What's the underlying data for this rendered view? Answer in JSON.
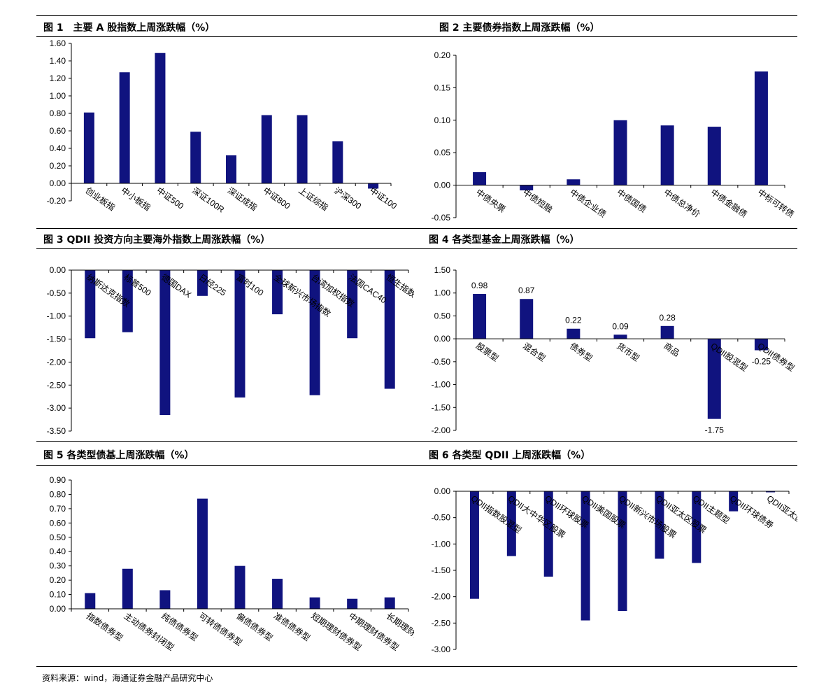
{
  "colors": {
    "bar": "#10137F",
    "axis": "#000000"
  },
  "figures": [
    {
      "title": "图 1　主要 A 股指数上周涨跌幅（%）"
    },
    {
      "title": "图 2  主要债券指数上周涨跌幅（%）"
    },
    {
      "title": "图 3 QDII 投资方向主要海外指数上周涨跌幅（%）"
    },
    {
      "title": "图 4  各类型基金上周涨跌幅（%）"
    },
    {
      "title": "图 5  各类型债基上周涨跌幅（%）"
    },
    {
      "title": "图 6  各类型 QDII 上周涨跌幅（%）"
    }
  ],
  "chart_data": [
    {
      "type": "bar",
      "categories": [
        "创业板指",
        "中小板指",
        "中证500",
        "深证100R",
        "深证成指",
        "中证800",
        "上证综指",
        "沪深300",
        "中证100"
      ],
      "values": [
        0.81,
        1.27,
        1.49,
        0.59,
        0.32,
        0.78,
        0.78,
        0.48,
        -0.06
      ],
      "ylim": [
        -0.2,
        1.6
      ],
      "yticks": [
        "1.60",
        "1.40",
        "1.20",
        "1.00",
        "0.80",
        "0.60",
        "0.40",
        "0.20",
        "0.00",
        "-0.20"
      ],
      "label_pos": "below-axis"
    },
    {
      "type": "bar",
      "categories": [
        "中债央票",
        "中债短融",
        "中债企业债",
        "中债国债",
        "中债总净价",
        "中债金融债",
        "中标可转债"
      ],
      "values": [
        0.02,
        -0.008,
        0.009,
        0.1,
        0.092,
        0.09,
        0.175
      ],
      "ylim": [
        -0.05,
        0.2
      ],
      "yticks": [
        "0.20",
        "0.15",
        "0.10",
        "0.05",
        "0.00",
        "-0.05"
      ],
      "label_pos": "below-axis"
    },
    {
      "type": "bar",
      "categories": [
        "纳斯达克指数",
        "标普500",
        "德国DAX",
        "日经225",
        "富时100",
        "全球新兴市场指数",
        "台湾加权指数",
        "法国CAC40",
        "恒生指数"
      ],
      "values": [
        -1.48,
        -1.35,
        -3.15,
        -0.56,
        -2.77,
        -0.96,
        -2.72,
        -1.48,
        -2.58
      ],
      "ylim": [
        -3.5,
        0
      ],
      "yticks": [
        "0.00",
        "-0.50",
        "-1.00",
        "-1.50",
        "-2.00",
        "-2.50",
        "-3.00",
        "-3.50"
      ],
      "label_pos": "below-axis"
    },
    {
      "type": "bar",
      "categories": [
        "股票型",
        "混合型",
        "债券型",
        "货币型",
        "商品",
        "QDII股混型",
        "QDII债券型"
      ],
      "values": [
        0.98,
        0.87,
        0.22,
        0.09,
        0.28,
        -1.75,
        -0.25
      ],
      "data_labels": [
        "0.98",
        "0.87",
        "0.22",
        "0.09",
        "0.28",
        "-1.75",
        "-0.25"
      ],
      "ylim": [
        -2.0,
        1.5
      ],
      "yticks": [
        "1.50",
        "1.00",
        "0.50",
        "0.00",
        "-0.50",
        "-1.00",
        "-1.50",
        "-2.00"
      ],
      "label_pos": "below-axis"
    },
    {
      "type": "bar",
      "categories": [
        "指数债券型",
        "主动债券封闭型",
        "纯债债券型",
        "可转债债券型",
        "偏债债券型",
        "准债债券型",
        "短期理财债券型",
        "中期理财债券型",
        "长期理财债券型"
      ],
      "values": [
        0.11,
        0.28,
        0.13,
        0.77,
        0.3,
        0.21,
        0.08,
        0.07,
        0.08
      ],
      "ylim": [
        0,
        0.9
      ],
      "yticks": [
        "0.90",
        "0.80",
        "0.70",
        "0.60",
        "0.50",
        "0.40",
        "0.30",
        "0.20",
        "0.10",
        "0.00"
      ],
      "label_pos": "below-axis"
    },
    {
      "type": "bar",
      "categories": [
        "QDII指数股混型",
        "QDII大中华区股票",
        "QDII环球股票",
        "QDII美国股票",
        "QDII新兴市场股票",
        "QDII亚太区股票",
        "QDII主题型",
        "QDII环球债券",
        "QDII亚太区债券"
      ],
      "values": [
        -2.04,
        -1.23,
        -1.62,
        -2.45,
        -2.27,
        -1.28,
        -1.36,
        -0.38,
        -0.02
      ],
      "ylim": [
        -3.0,
        0
      ],
      "yticks": [
        "0.00",
        "-0.50",
        "-1.00",
        "-1.50",
        "-2.00",
        "-2.50",
        "-3.00"
      ],
      "label_pos": "below-axis"
    }
  ],
  "source": "资料来源：wind，海通证券金融产品研究中心"
}
